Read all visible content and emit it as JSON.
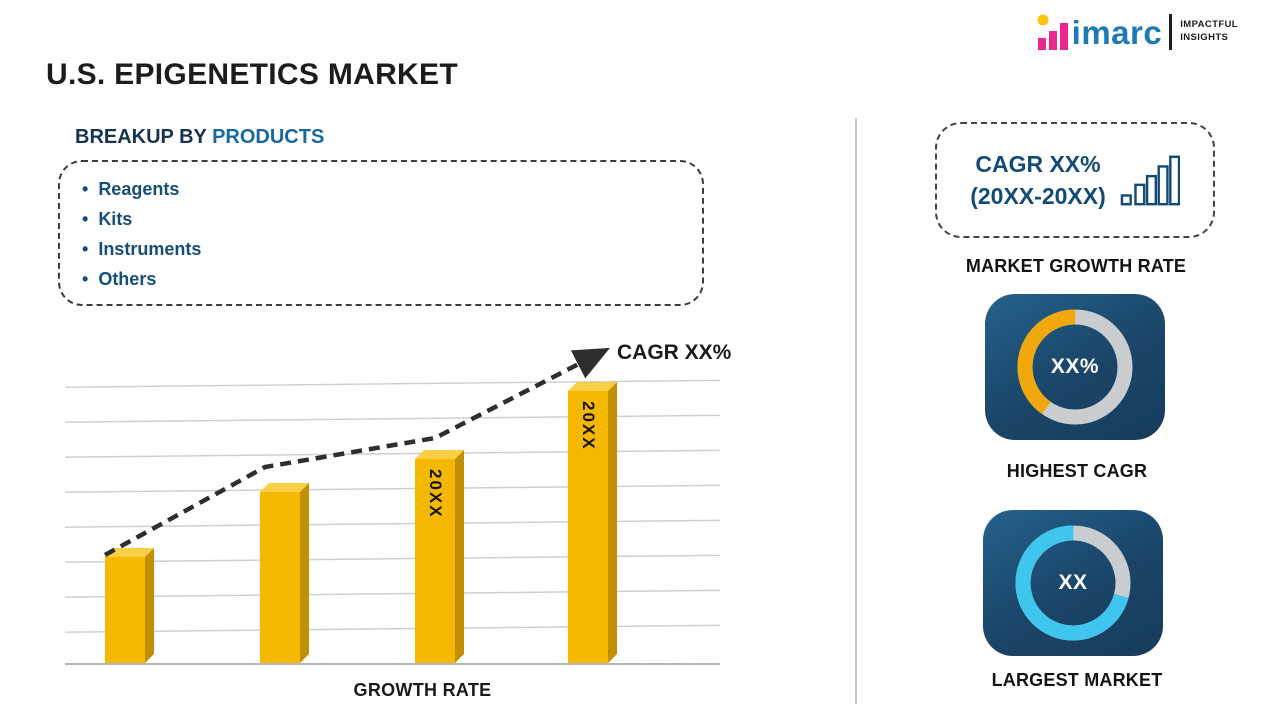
{
  "header": {
    "title": "U.S. EPIGENETICS MARKET",
    "logo": {
      "brand": "imarc",
      "tagline_line1": "IMPACTFUL",
      "tagline_line2": "INSIGHTS",
      "brand_color": "#1e7ab5",
      "icon_magenta": "#ec268f",
      "icon_yellow": "#ffc20e"
    }
  },
  "breakup": {
    "heading_prefix": "BREAKUP BY ",
    "heading_highlight": "PRODUCTS",
    "items": [
      "Reagents",
      "Kits",
      "Instruments",
      "Others"
    ]
  },
  "chart_data": {
    "type": "bar",
    "title": "GROWTH RATE",
    "categories": [
      "",
      "",
      "20XX",
      "20XX"
    ],
    "values": [
      39,
      63,
      75,
      100
    ],
    "ylim": [
      0,
      100
    ],
    "grid": "horizontal",
    "trend_annotation": "CAGR XX%",
    "colors": {
      "front": "#f5b800",
      "side": "#c28f00",
      "top": "#f8cf47"
    }
  },
  "sidebar": {
    "growth_card": {
      "line1": "CAGR XX%",
      "line2": "(20XX-20XX)"
    },
    "growth_caption": "MARKET GROWTH RATE",
    "cagr_card": {
      "value": "XX%",
      "ring": {
        "base_color": "#c9cdd0",
        "segment_color": "#f0a80c",
        "segment_start_deg": 215,
        "segment_sweep_deg": 145
      }
    },
    "cagr_caption": "HIGHEST CAGR",
    "market_card": {
      "value": "XX",
      "ring": {
        "base_color": "#c9cdd0",
        "segment_color": "#3ec6ee",
        "segment_start_deg": 105,
        "segment_sweep_deg": 255
      }
    },
    "market_caption": "LARGEST MARKET",
    "card_color": "#1a4568",
    "accent_blue": "#134b77"
  }
}
